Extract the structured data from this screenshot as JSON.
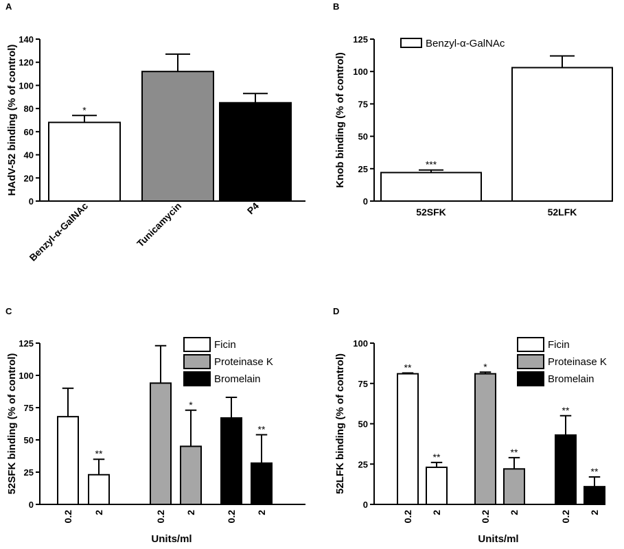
{
  "chart_data": [
    {
      "panel": "A",
      "type": "bar",
      "ylabel": "HAdV-52 binding (% of control)",
      "ylim": [
        0,
        140
      ],
      "yticks": [
        0,
        20,
        40,
        60,
        80,
        100,
        120,
        140
      ],
      "categories": [
        "Benzyl-α-GalNAc",
        "Tunicamycin",
        "P4"
      ],
      "values": [
        68,
        112,
        85
      ],
      "errors": [
        6,
        15,
        8
      ],
      "significance": [
        "*",
        "",
        ""
      ],
      "colors": [
        "#ffffff",
        "#8c8c8c",
        "#000000"
      ]
    },
    {
      "panel": "B",
      "type": "bar",
      "ylabel": "Knob binding (% of control)",
      "ylim": [
        0,
        125
      ],
      "yticks": [
        0,
        25,
        50,
        75,
        100,
        125
      ],
      "categories": [
        "52SFK",
        "52LFK"
      ],
      "values": [
        22,
        103
      ],
      "errors": [
        2,
        9
      ],
      "significance": [
        "***",
        ""
      ],
      "colors": [
        "#ffffff",
        "#ffffff"
      ],
      "legend": [
        {
          "name": "Benzyl-α-GalNAc",
          "color": "#ffffff"
        }
      ],
      "legend_position": "top-left"
    },
    {
      "panel": "C",
      "type": "bar",
      "ylabel": "52SFK binding (% of control)",
      "xlabel": "Units/ml",
      "ylim": [
        0,
        125
      ],
      "yticks": [
        0,
        25,
        50,
        75,
        100,
        125
      ],
      "categories": [
        "0.2",
        "2",
        "0.2",
        "2",
        "0.2",
        "2"
      ],
      "values": [
        68,
        23,
        94,
        45,
        67,
        32
      ],
      "errors": [
        22,
        12,
        29,
        28,
        16,
        22
      ],
      "significance": [
        "",
        "**",
        "",
        "*",
        "",
        "**"
      ],
      "colors": [
        "#ffffff",
        "#ffffff",
        "#a6a6a6",
        "#a6a6a6",
        "#000000",
        "#000000"
      ],
      "legend": [
        {
          "name": "Ficin",
          "color": "#ffffff"
        },
        {
          "name": "Proteinase K",
          "color": "#a6a6a6"
        },
        {
          "name": "Bromelain",
          "color": "#000000"
        }
      ],
      "legend_position": "top-right"
    },
    {
      "panel": "D",
      "type": "bar",
      "ylabel": "52LFK binding (% of control)",
      "xlabel": "Units/ml",
      "ylim": [
        0,
        100
      ],
      "yticks": [
        0,
        25,
        50,
        75,
        100
      ],
      "categories": [
        "0.2",
        "2",
        "0.2",
        "2",
        "0.2",
        "2"
      ],
      "values": [
        81,
        23,
        81,
        22,
        43,
        11
      ],
      "errors": [
        0.5,
        3,
        1,
        7,
        12,
        6
      ],
      "significance": [
        "**",
        "**",
        "*",
        "**",
        "**",
        "**"
      ],
      "colors": [
        "#ffffff",
        "#ffffff",
        "#a6a6a6",
        "#a6a6a6",
        "#000000",
        "#000000"
      ],
      "legend": [
        {
          "name": "Ficin",
          "color": "#ffffff"
        },
        {
          "name": "Proteinase K",
          "color": "#a6a6a6"
        },
        {
          "name": "Bromelain",
          "color": "#000000"
        }
      ],
      "legend_position": "top-right"
    }
  ]
}
